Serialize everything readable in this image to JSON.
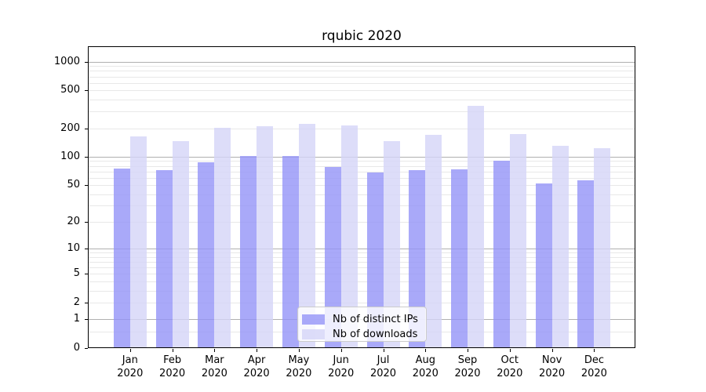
{
  "chart_data": {
    "type": "bar",
    "title": "rqubic 2020",
    "months": [
      "Jan",
      "Feb",
      "Mar",
      "Apr",
      "May",
      "Jun",
      "Jul",
      "Aug",
      "Sep",
      "Oct",
      "Nov",
      "Dec"
    ],
    "year_label": "2020",
    "series": [
      {
        "name": "Nb of distinct IPs",
        "color": "rgba(148,148,247,0.8)",
        "values": [
          75,
          72,
          88,
          101,
          101,
          78,
          68,
          72,
          74,
          91,
          52,
          56
        ]
      },
      {
        "name": "Nb of downloads",
        "color": "rgba(212,212,248,0.8)",
        "values": [
          165,
          147,
          204,
          210,
          221,
          216,
          147,
          171,
          345,
          173,
          130,
          123
        ]
      }
    ],
    "y_scale": "log10(1+y)",
    "ylim": [
      0,
      1450
    ],
    "y_ticks": [
      0,
      1,
      2,
      5,
      10,
      20,
      50,
      100,
      200,
      500,
      1000
    ],
    "y_major_gridlines": [
      1,
      10,
      100,
      1000
    ],
    "y_minor_gridlines": [
      0.5,
      2,
      3,
      4,
      5,
      6,
      7,
      8,
      9,
      20,
      30,
      40,
      50,
      60,
      70,
      80,
      90,
      200,
      300,
      400,
      500,
      600,
      700,
      800,
      900
    ],
    "grid": true,
    "legend_position": "lower center",
    "colors": {
      "major_grid": "#b0b0b0",
      "minor_grid": "#e8e8e8",
      "axis": "#000000",
      "background": "#ffffff"
    }
  }
}
